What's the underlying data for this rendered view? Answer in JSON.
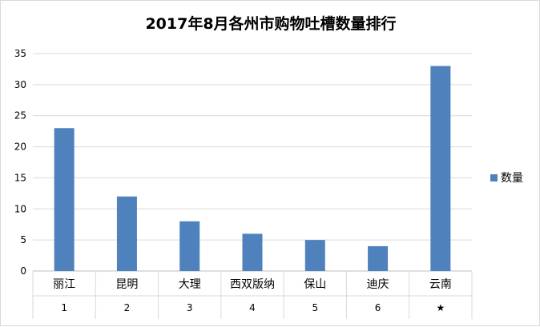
{
  "chart_data": {
    "type": "bar",
    "title": "2017年8月各州市购物吐槽数量排行",
    "categories": [
      "丽江",
      "昆明",
      "大理",
      "西双版纳",
      "保山",
      "迪庆",
      "云南"
    ],
    "category_index": [
      "1",
      "2",
      "3",
      "4",
      "5",
      "6",
      "★"
    ],
    "series": [
      {
        "name": "数量",
        "values": [
          23,
          12,
          8,
          6,
          5,
          4,
          33
        ],
        "color": "#4f81bd"
      }
    ],
    "ylim": [
      0,
      35
    ],
    "yticks": [
      0,
      5,
      10,
      15,
      20,
      25,
      30,
      35
    ],
    "grid": true,
    "legend_position": "right"
  }
}
